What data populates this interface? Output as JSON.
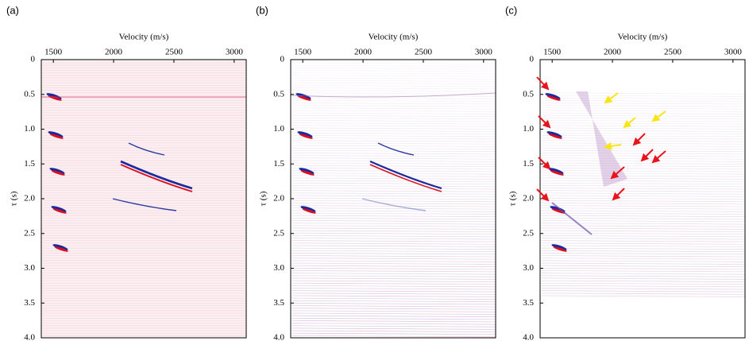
{
  "chart_data": [
    {
      "type": "image",
      "panel_label": "(a)",
      "x_label": "Velocity (m/s)",
      "y_label": "τ (s)",
      "xlim": [
        1400,
        3100
      ],
      "ylim": [
        0,
        4
      ],
      "xticks": [
        1500,
        2000,
        2500,
        3000
      ],
      "yticks": [
        0,
        0.5,
        {
          "value": 1,
          "label": "1.0"
        },
        1.5,
        {
          "value": 2,
          "label": "2.0"
        },
        2.5,
        {
          "value": 3,
          "label": "3.0"
        },
        3.5,
        {
          "value": 4,
          "label": "4.0"
        }
      ]
    },
    {
      "type": "image",
      "panel_label": "(b)",
      "x_label": "Velocity (m/s)",
      "y_label": "τ (s)",
      "xlim": [
        1400,
        3100
      ],
      "ylim": [
        0,
        4
      ],
      "xticks": [
        1500,
        2000,
        2500,
        3000
      ],
      "yticks": [
        0,
        0.5,
        {
          "value": 1,
          "label": "1.0"
        },
        1.5,
        {
          "value": 2,
          "label": "2.0"
        },
        2.5,
        {
          "value": 3,
          "label": "3.0"
        },
        3.5,
        {
          "value": 4,
          "label": "4.0"
        }
      ]
    },
    {
      "type": "image",
      "panel_label": "(c)",
      "x_label": "Velocity (m/s)",
      "y_label": "τ (s)",
      "xlim": [
        1400,
        3100
      ],
      "ylim": [
        0,
        4
      ],
      "xticks": [
        1500,
        2000,
        2500,
        3000
      ],
      "yticks": [
        0,
        0.5,
        {
          "value": 1,
          "label": "1.0"
        },
        1.5,
        {
          "value": 2,
          "label": "2.0"
        },
        2.5,
        {
          "value": 3,
          "label": "3.0"
        },
        3.5,
        {
          "value": 4,
          "label": "4.0"
        }
      ]
    }
  ]
}
